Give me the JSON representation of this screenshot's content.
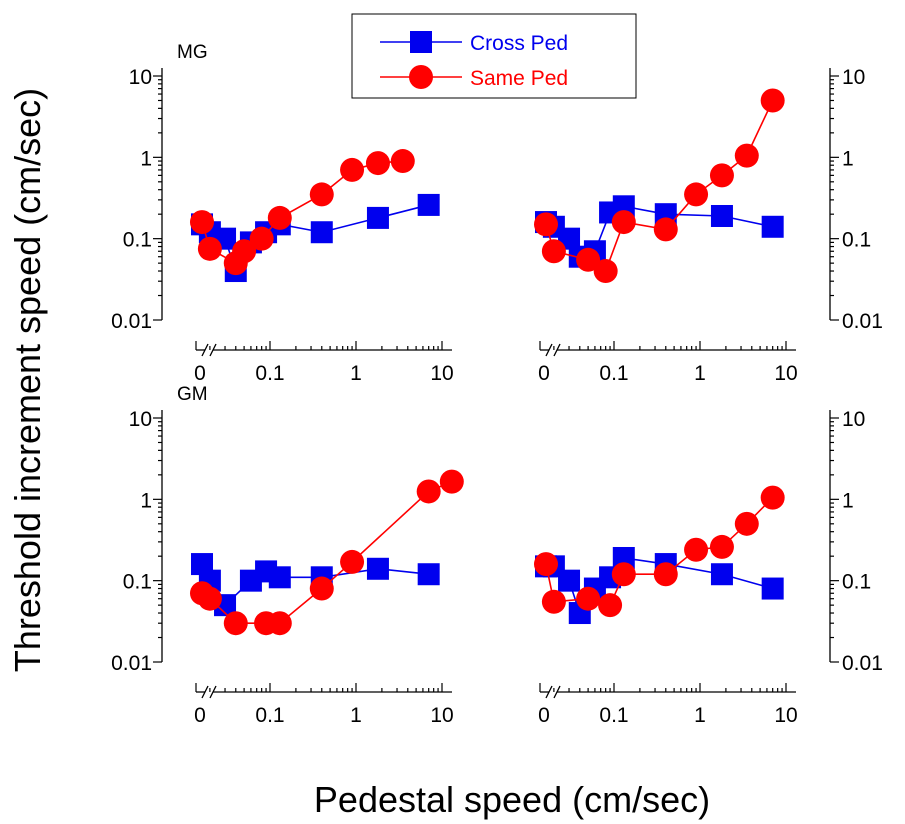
{
  "figure": {
    "ylabel": "Threshold increment speed (cm/sec)",
    "xlabel": "Pedestal speed (cm/sec)"
  },
  "legend": {
    "items": [
      {
        "label": "Cross Ped",
        "color": "#0000ee",
        "marker": "square"
      },
      {
        "label": "Same Ped",
        "color": "#ff0000",
        "marker": "circle"
      }
    ]
  },
  "axes": {
    "x_ticks": [
      "0",
      "0.1",
      "1",
      "10"
    ],
    "y_ticks": [
      "0.01",
      "0.1",
      "1",
      "10"
    ],
    "x_scale": "log with broken axis at 0",
    "y_scale": "log"
  },
  "chart_data": [
    {
      "type": "line",
      "panel": "top-left",
      "title": "MG",
      "ylim": [
        0.01,
        10
      ],
      "y_scale": "log",
      "series": [
        {
          "name": "Cross Ped",
          "color": "#0000ee",
          "marker": "square",
          "points": [
            [
              0,
              0.15
            ],
            [
              0.02,
              0.12
            ],
            [
              0.03,
              0.1
            ],
            [
              0.04,
              0.04
            ],
            [
              0.06,
              0.09
            ],
            [
              0.09,
              0.12
            ],
            [
              0.13,
              0.15
            ],
            [
              0.4,
              0.12
            ],
            [
              1.8,
              0.18
            ],
            [
              7,
              0.26
            ]
          ]
        },
        {
          "name": "Same Ped",
          "color": "#ff0000",
          "marker": "circle",
          "points": [
            [
              0,
              0.16
            ],
            [
              0.02,
              0.075
            ],
            [
              0.04,
              0.05
            ],
            [
              0.05,
              0.07
            ],
            [
              0.08,
              0.1
            ],
            [
              0.13,
              0.18
            ],
            [
              0.4,
              0.35
            ],
            [
              0.9,
              0.7
            ],
            [
              1.8,
              0.85
            ],
            [
              3.5,
              0.9
            ]
          ]
        }
      ]
    },
    {
      "type": "line",
      "panel": "top-right",
      "title": "",
      "ylim": [
        0.01,
        10
      ],
      "y_scale": "log",
      "series": [
        {
          "name": "Cross Ped",
          "color": "#0000ee",
          "marker": "square",
          "points": [
            [
              0,
              0.16
            ],
            [
              0.02,
              0.14
            ],
            [
              0.03,
              0.1
            ],
            [
              0.04,
              0.06
            ],
            [
              0.06,
              0.07
            ],
            [
              0.09,
              0.21
            ],
            [
              0.13,
              0.25
            ],
            [
              0.4,
              0.2
            ],
            [
              1.8,
              0.19
            ],
            [
              7,
              0.14
            ]
          ]
        },
        {
          "name": "Same Ped",
          "color": "#ff0000",
          "marker": "circle",
          "points": [
            [
              0,
              0.15
            ],
            [
              0.02,
              0.07
            ],
            [
              0.05,
              0.055
            ],
            [
              0.08,
              0.04
            ],
            [
              0.13,
              0.16
            ],
            [
              0.4,
              0.13
            ],
            [
              0.9,
              0.35
            ],
            [
              1.8,
              0.6
            ],
            [
              3.5,
              1.05
            ],
            [
              7,
              5
            ]
          ]
        }
      ]
    },
    {
      "type": "line",
      "panel": "bottom-left",
      "title": "GM",
      "ylim": [
        0.01,
        10
      ],
      "y_scale": "log",
      "series": [
        {
          "name": "Cross Ped",
          "color": "#0000ee",
          "marker": "square",
          "points": [
            [
              0,
              0.16
            ],
            [
              0.02,
              0.1
            ],
            [
              0.03,
              0.05
            ],
            [
              0.06,
              0.1
            ],
            [
              0.09,
              0.13
            ],
            [
              0.13,
              0.11
            ],
            [
              0.4,
              0.11
            ],
            [
              1.8,
              0.14
            ],
            [
              7,
              0.12
            ]
          ]
        },
        {
          "name": "Same Ped",
          "color": "#ff0000",
          "marker": "circle",
          "points": [
            [
              0,
              0.07
            ],
            [
              0.02,
              0.06
            ],
            [
              0.04,
              0.03
            ],
            [
              0.09,
              0.03
            ],
            [
              0.13,
              0.03
            ],
            [
              0.4,
              0.08
            ],
            [
              0.9,
              0.17
            ],
            [
              7,
              1.25
            ],
            [
              13,
              1.65
            ]
          ]
        }
      ]
    },
    {
      "type": "line",
      "panel": "bottom-right",
      "title": "",
      "ylim": [
        0.01,
        10
      ],
      "y_scale": "log",
      "series": [
        {
          "name": "Cross Ped",
          "color": "#0000ee",
          "marker": "square",
          "points": [
            [
              0,
              0.15
            ],
            [
              0.02,
              0.15
            ],
            [
              0.03,
              0.1
            ],
            [
              0.04,
              0.04
            ],
            [
              0.06,
              0.08
            ],
            [
              0.09,
              0.11
            ],
            [
              0.13,
              0.19
            ],
            [
              0.4,
              0.16
            ],
            [
              1.8,
              0.12
            ],
            [
              7,
              0.08
            ]
          ]
        },
        {
          "name": "Same Ped",
          "color": "#ff0000",
          "marker": "circle",
          "points": [
            [
              0,
              0.16
            ],
            [
              0.02,
              0.055
            ],
            [
              0.05,
              0.06
            ],
            [
              0.09,
              0.05
            ],
            [
              0.13,
              0.12
            ],
            [
              0.4,
              0.12
            ],
            [
              0.9,
              0.24
            ],
            [
              1.8,
              0.26
            ],
            [
              3.5,
              0.5
            ],
            [
              7,
              1.05
            ]
          ]
        }
      ]
    }
  ]
}
